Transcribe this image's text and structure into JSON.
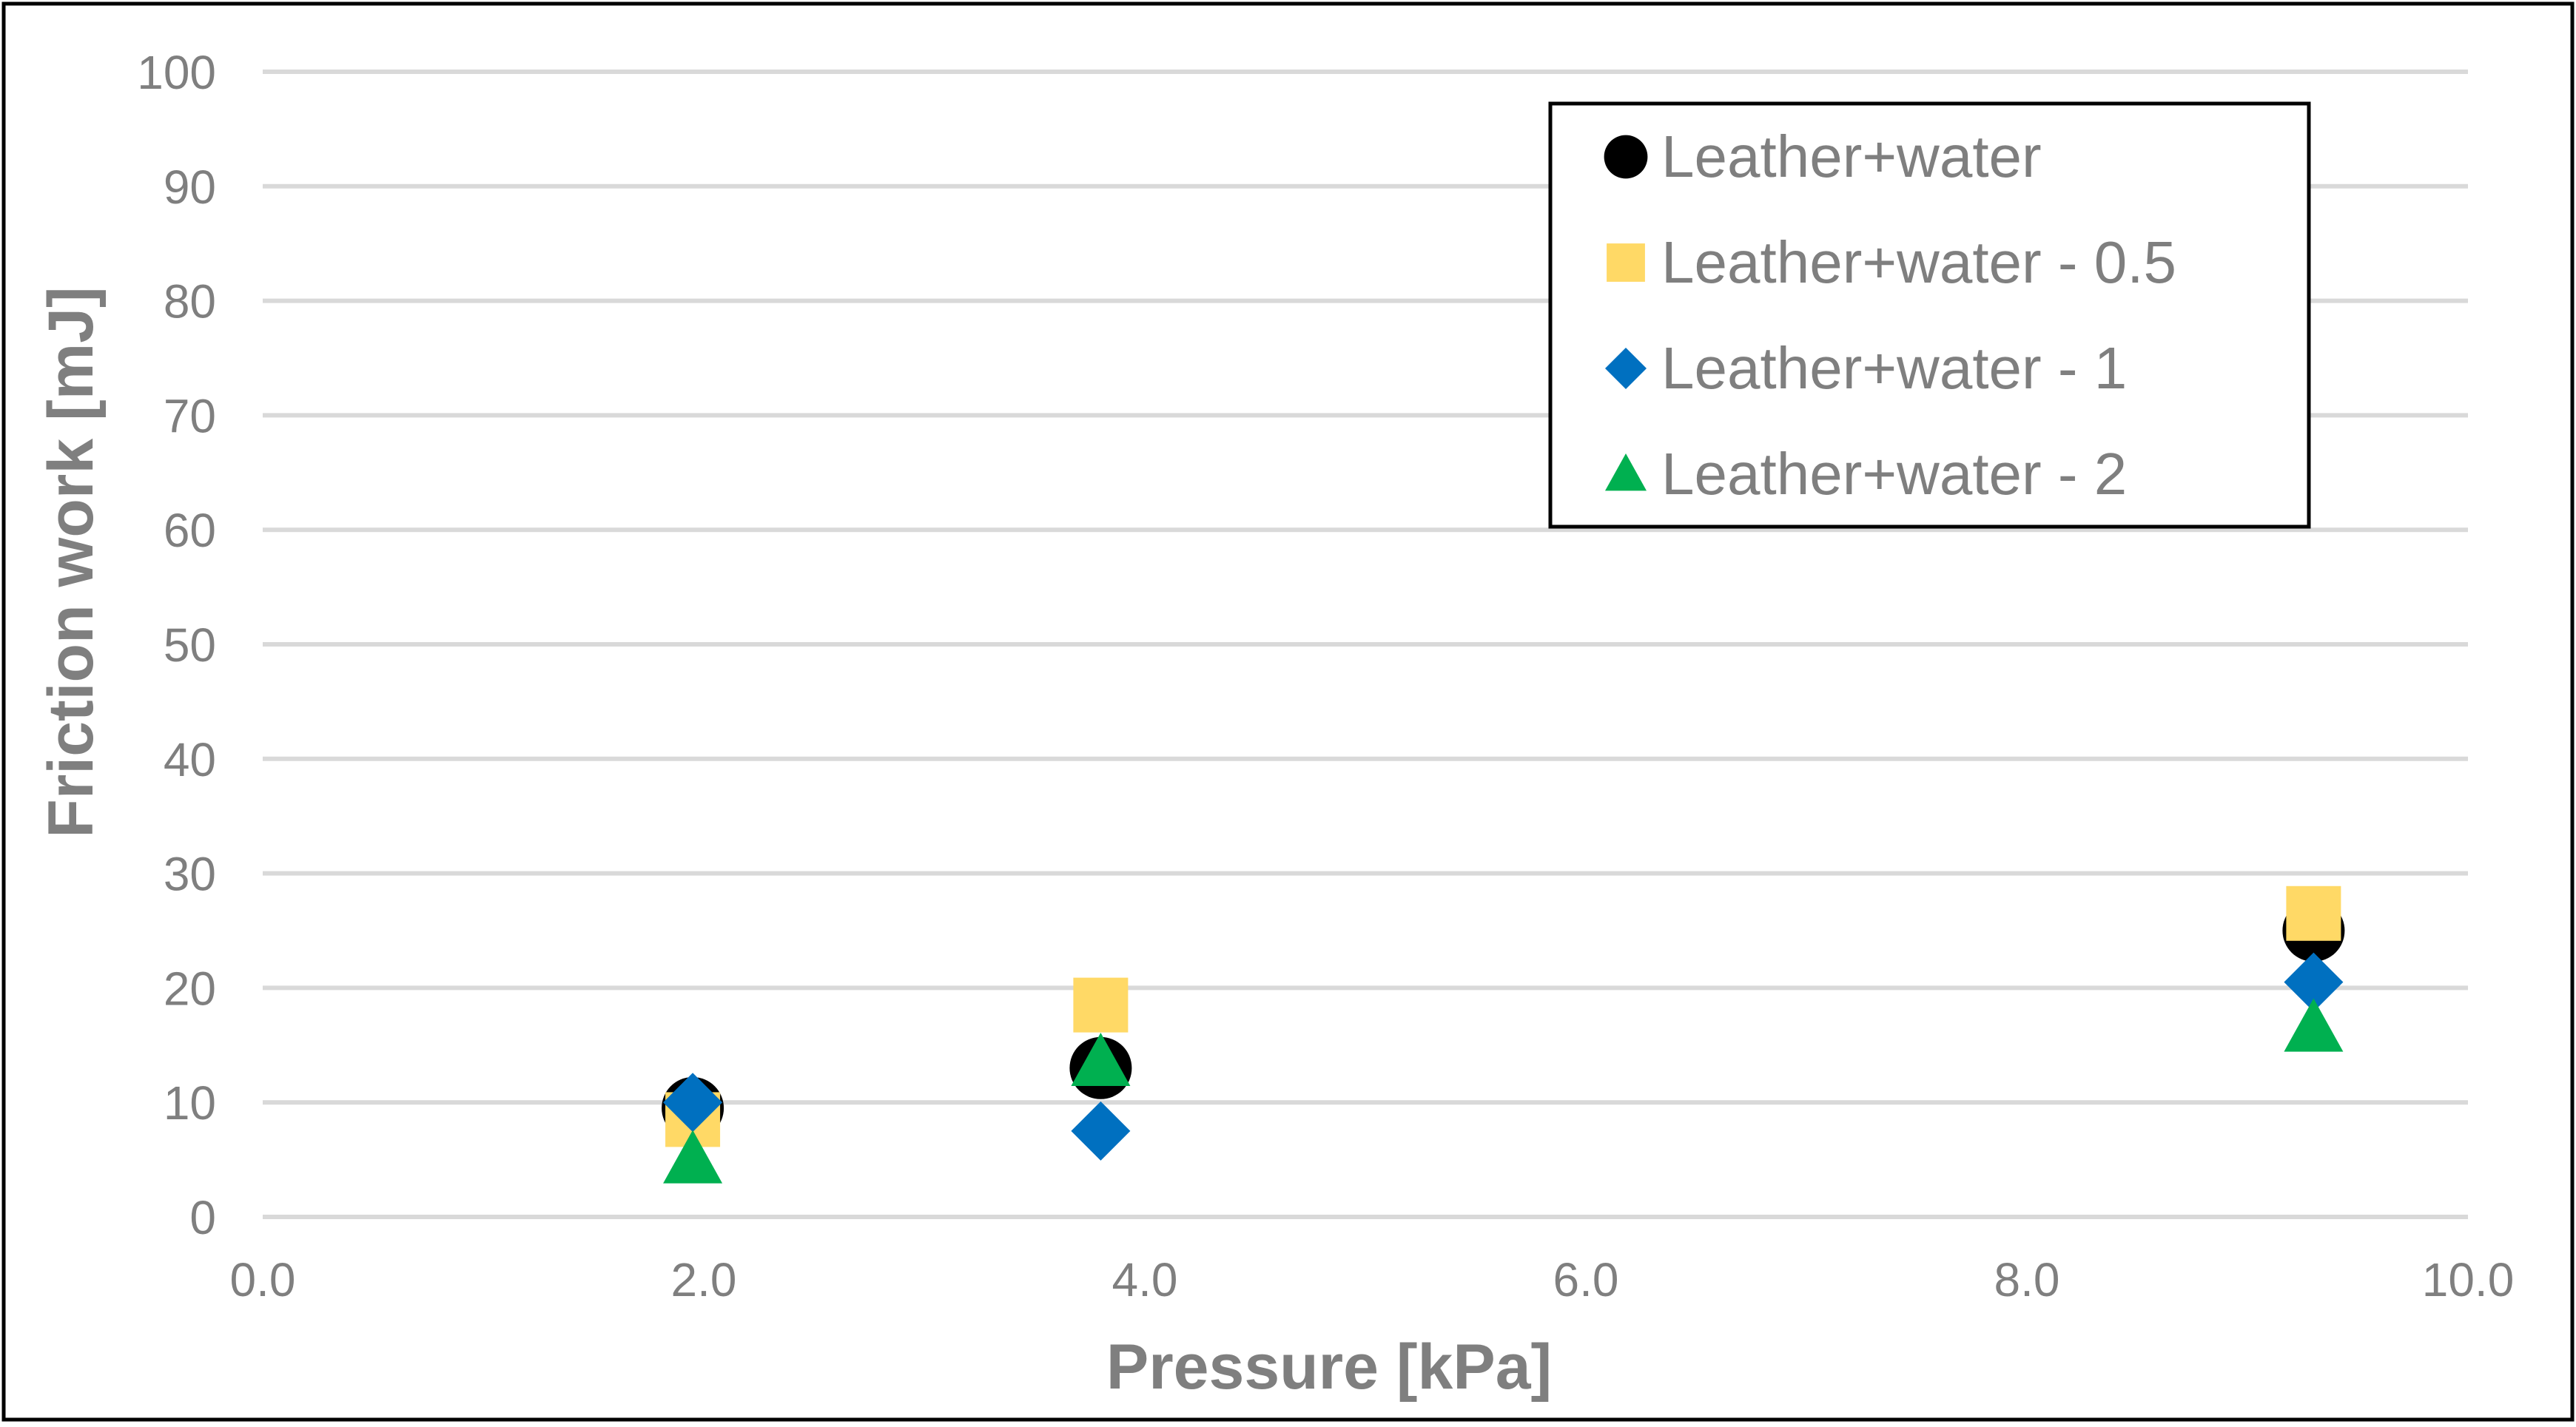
{
  "chart_data": {
    "type": "scatter",
    "title": "",
    "xlabel": "Pressure [kPa]",
    "ylabel": "Friction work [mJ]",
    "xlim": [
      0,
      10
    ],
    "ylim": [
      0,
      100
    ],
    "x_ticks": [
      "0.0",
      "2.0",
      "4.0",
      "6.0",
      "8.0",
      "10.0"
    ],
    "y_ticks": [
      "0",
      "10",
      "20",
      "30",
      "40",
      "50",
      "60",
      "70",
      "80",
      "90",
      "100"
    ],
    "grid": "horizontal",
    "legend_position": "top-right",
    "series": [
      {
        "name": "Leather+water",
        "marker": "circle",
        "color": "#000000",
        "points": [
          {
            "x": 1.95,
            "y": 9.5
          },
          {
            "x": 3.8,
            "y": 13.0
          },
          {
            "x": 9.3,
            "y": 25.0
          }
        ]
      },
      {
        "name": "Leather+water - 0.5",
        "marker": "square",
        "color": "#FFD966",
        "points": [
          {
            "x": 1.95,
            "y": 8.5
          },
          {
            "x": 3.8,
            "y": 18.5
          },
          {
            "x": 9.3,
            "y": 26.5
          }
        ]
      },
      {
        "name": "Leather+water - 1",
        "marker": "diamond",
        "color": "#0070C0",
        "points": [
          {
            "x": 1.95,
            "y": 10.0
          },
          {
            "x": 3.8,
            "y": 7.5
          },
          {
            "x": 9.3,
            "y": 20.5
          }
        ]
      },
      {
        "name": "Leather+water - 2",
        "marker": "triangle",
        "color": "#00B050",
        "points": [
          {
            "x": 1.95,
            "y": 5.0
          },
          {
            "x": 3.8,
            "y": 13.5
          },
          {
            "x": 9.3,
            "y": 16.5
          }
        ]
      }
    ]
  },
  "colors": {
    "axis_text": "#7F7F7F",
    "grid": "#D9D9D9",
    "border": "#000000"
  }
}
